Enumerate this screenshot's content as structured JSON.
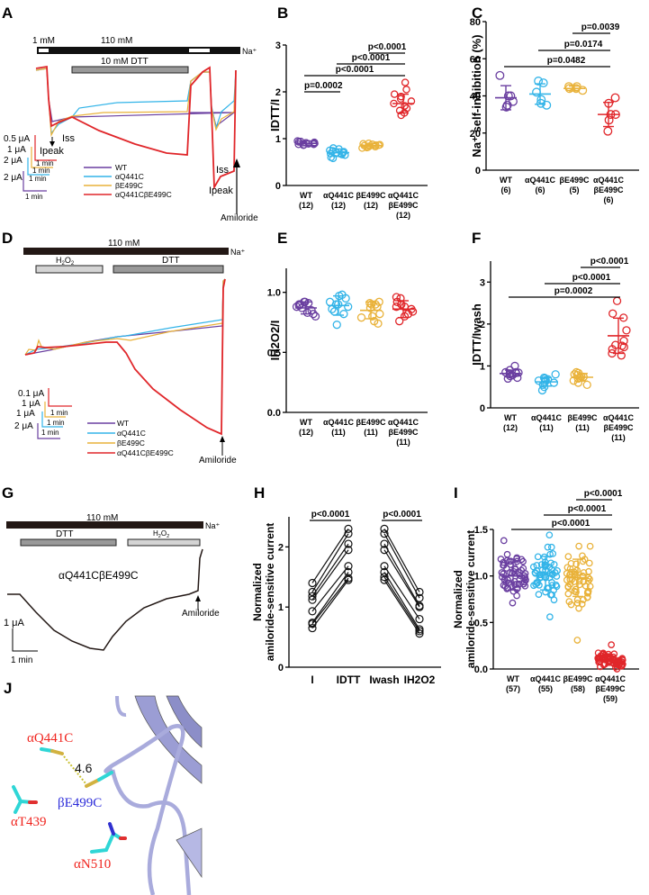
{
  "colors": {
    "WT": "#6a3fa0",
    "aQ441C": "#33b4e8",
    "bE499C": "#e9b23a",
    "double": "#e0262a",
    "black": "#231815",
    "dtt_bar": "#999999",
    "h2o2_bar": "#d4d4d4",
    "protein": "#a9abdc",
    "stick_cyan": "#2fd6d6",
    "sulfur": "#d2b240",
    "red_label": "#f0241e",
    "blue_label": "#2b2bd9"
  },
  "panels": {
    "A": {
      "label": "A",
      "na_label": "Na⁺",
      "conc_low": "1 mM",
      "conc_high": "110 mM",
      "dtt_label": "10 mM DTT",
      "ipeak": "Ipeak",
      "iss": "Iss",
      "amiloride": "Amiloride",
      "scale_bars": [
        {
          "current": "0.5 μA",
          "time": "1 min",
          "series": "double"
        },
        {
          "current": "1 μA",
          "time": "1 min",
          "series": "bE499C"
        },
        {
          "current": "2 μA",
          "time": "1 min",
          "series": "aQ441C"
        },
        {
          "current": "2 μA",
          "time": "1 min",
          "series": "WT"
        }
      ],
      "legend": [
        "WT",
        "αQ441C",
        "βE499C",
        "αQ441CβE499C"
      ]
    },
    "D": {
      "label": "D",
      "na_label": "Na⁺",
      "conc_high": "110 mM",
      "h2o2_label": "H2O2",
      "dtt_label": "DTT",
      "amiloride": "Amiloride",
      "scale_bars": [
        {
          "current": "0.1 μA",
          "time": "",
          "series": "double"
        },
        {
          "current": "1 μA",
          "time": "1 min",
          "series": "bE499C"
        },
        {
          "current": "1 μA",
          "time": "1 min",
          "series": "aQ441C"
        },
        {
          "current": "2 μA",
          "time": "1 min",
          "series": "WT"
        }
      ],
      "legend": [
        "WT",
        "αQ441C",
        "βE499C",
        "αQ441CβE499C"
      ]
    },
    "G": {
      "label": "G",
      "na_label": "Na⁺",
      "conc_high": "110 mM",
      "dtt_label": "DTT",
      "h2o2_label": "H2O2",
      "construct": "αQ441CβE499C",
      "amiloride": "Amiloride",
      "scale_current": "1 μA",
      "scale_time": "1 min"
    },
    "J": {
      "label": "J",
      "labels": {
        "aQ441C": "αQ441C",
        "bE499C": "βE499C",
        "aT439": "αT439",
        "aN510": "αN510",
        "distance": "4.6"
      }
    }
  },
  "chart_data": [
    {
      "id": "B",
      "type": "scatter",
      "title": "",
      "ylabel": "IDTT/I",
      "ylim": [
        0,
        3
      ],
      "yticks": [
        0,
        1,
        2,
        3
      ],
      "categories": [
        "WT\n(12)",
        "αQ441C\n(12)",
        "βE499C\n(12)",
        "αQ441C\nβE499C\n(12)"
      ],
      "series": [
        {
          "name": "WT",
          "mean": 0.9,
          "sd": 0.05,
          "values": [
            0.88,
            0.92,
            0.95,
            0.87,
            0.9,
            0.93,
            0.86,
            0.91,
            0.89,
            0.94,
            0.88,
            0.9
          ]
        },
        {
          "name": "αQ441C",
          "mean": 0.7,
          "sd": 0.08,
          "values": [
            0.6,
            0.65,
            0.7,
            0.75,
            0.8,
            0.68,
            0.72,
            0.58,
            0.78,
            0.66,
            0.74,
            0.7
          ]
        },
        {
          "name": "βE499C",
          "mean": 0.85,
          "sd": 0.05,
          "values": [
            0.82,
            0.86,
            0.9,
            0.83,
            0.88,
            0.8,
            0.85,
            0.87,
            0.84,
            0.89,
            0.81,
            0.86
          ]
        },
        {
          "name": "αQ441CβE499C",
          "mean": 1.75,
          "sd": 0.2,
          "values": [
            2.2,
            2.05,
            1.95,
            1.9,
            1.8,
            1.75,
            1.7,
            1.65,
            1.6,
            1.55,
            1.5,
            1.85
          ]
        }
      ],
      "comparisons": [
        {
          "from": 0,
          "to": 1,
          "label": "p=0.0002"
        },
        {
          "from": 0,
          "to": 3,
          "label": "p<0.0001"
        },
        {
          "from": 1,
          "to": 3,
          "label": "p<0.0001"
        },
        {
          "from": 2,
          "to": 3,
          "label": "p<0.0001"
        }
      ]
    },
    {
      "id": "C",
      "type": "scatter",
      "ylabel": "Na⁺ self-inhibition (%)",
      "ylim": [
        0,
        80
      ],
      "yticks": [
        0,
        20,
        40,
        60,
        80
      ],
      "categories": [
        "WT\n(6)",
        "αQ441C\n(6)",
        "βE499C\n(5)",
        "αQ441C\nβE499C\n(6)"
      ],
      "series": [
        {
          "name": "WT",
          "mean": 39,
          "sd": 6.5,
          "values": [
            51,
            40,
            40,
            37,
            34,
            35
          ]
        },
        {
          "name": "αQ441C",
          "mean": 41,
          "sd": 5.5,
          "values": [
            48,
            47,
            42,
            38,
            35,
            36
          ]
        },
        {
          "name": "βE499C",
          "mean": 44,
          "sd": 1.3,
          "values": [
            45,
            44,
            43,
            44,
            45
          ]
        },
        {
          "name": "αQ441CβE499C",
          "mean": 30,
          "sd": 6.5,
          "values": [
            39,
            36,
            30,
            30,
            27,
            21
          ]
        }
      ],
      "comparisons": [
        {
          "from": 0,
          "to": 3,
          "label": "p=0.0482"
        },
        {
          "from": 1,
          "to": 3,
          "label": "p=0.0174"
        },
        {
          "from": 2,
          "to": 3,
          "label": "p=0.0039"
        }
      ]
    },
    {
      "id": "E",
      "type": "scatter",
      "ylabel": "IH2O2/I",
      "ylim": [
        0,
        1.2
      ],
      "yticks": [
        0.0,
        0.5,
        1.0
      ],
      "ytick_labels": [
        "0.0",
        "0.5",
        "1.0"
      ],
      "categories": [
        "WT\n(12)",
        "αQ441C\n(11)",
        "βE499C\n(11)",
        "αQ441C\nβE499C\n(11)"
      ],
      "series": [
        {
          "name": "WT",
          "mean": 0.87,
          "sd": 0.05,
          "values": [
            0.92,
            0.91,
            0.9,
            0.92,
            0.89,
            0.88,
            0.85,
            0.83,
            0.82,
            0.8,
            0.87,
            0.9
          ]
        },
        {
          "name": "αQ441C",
          "mean": 0.89,
          "sd": 0.08,
          "values": [
            0.98,
            0.97,
            0.95,
            0.92,
            0.9,
            0.88,
            0.86,
            0.84,
            0.82,
            0.73,
            0.9
          ]
        },
        {
          "name": "βE499C",
          "mean": 0.85,
          "sd": 0.07,
          "values": [
            0.92,
            0.91,
            0.9,
            0.9,
            0.88,
            0.82,
            0.8,
            0.79,
            0.76,
            0.74,
            0.87
          ]
        },
        {
          "name": "αQ441CβE499C",
          "mean": 0.86,
          "sd": 0.07,
          "values": [
            0.96,
            0.95,
            0.92,
            0.9,
            0.88,
            0.86,
            0.84,
            0.82,
            0.8,
            0.76,
            0.88
          ]
        }
      ],
      "comparisons": []
    },
    {
      "id": "F",
      "type": "scatter",
      "ylabel": "IDTT/Iwash",
      "ylim": [
        0,
        3.5
      ],
      "yticks": [
        0,
        1,
        2,
        3
      ],
      "categories": [
        "WT\n(12)",
        "αQ441C\n(11)",
        "βE499C\n(11)",
        "αQ441C\nβE499C\n(11)"
      ],
      "series": [
        {
          "name": "WT",
          "mean": 0.82,
          "sd": 0.08,
          "values": [
            1.0,
            0.9,
            0.85,
            0.84,
            0.83,
            0.82,
            0.8,
            0.78,
            0.76,
            0.72,
            0.7,
            0.85
          ]
        },
        {
          "name": "αQ441C",
          "mean": 0.62,
          "sd": 0.1,
          "values": [
            0.8,
            0.72,
            0.7,
            0.68,
            0.65,
            0.62,
            0.6,
            0.55,
            0.5,
            0.42,
            0.66
          ]
        },
        {
          "name": "βE499C",
          "mean": 0.73,
          "sd": 0.09,
          "values": [
            0.85,
            0.83,
            0.8,
            0.78,
            0.75,
            0.72,
            0.7,
            0.65,
            0.6,
            0.55,
            0.74
          ]
        },
        {
          "name": "αQ441CβE499C",
          "mean": 1.72,
          "sd": 0.42,
          "values": [
            2.55,
            2.25,
            2.15,
            1.85,
            1.6,
            1.5,
            1.48,
            1.45,
            1.4,
            1.3,
            1.25
          ]
        }
      ],
      "comparisons": [
        {
          "from": 0,
          "to": 3,
          "label": "p=0.0002"
        },
        {
          "from": 1,
          "to": 3,
          "label": "p<0.0001"
        },
        {
          "from": 2,
          "to": 3,
          "label": "p<0.0001"
        }
      ]
    },
    {
      "id": "H",
      "type": "line",
      "ylabel": "Normalized amiloride-sensitive current",
      "ylim": [
        0,
        2.5
      ],
      "yticks": [
        0,
        1,
        2
      ],
      "categories": [
        "I",
        "IDTT",
        "Iwash",
        "IH2O2"
      ],
      "pairs": [
        {
          "from": [
            0.65,
            0.72,
            0.74,
            0.93,
            1.12,
            1.18,
            1.25,
            1.4
          ],
          "to": [
            1.45,
            1.48,
            1.58,
            1.68,
            1.95,
            2.05,
            2.22,
            2.3
          ]
        },
        {
          "from": [
            1.45,
            1.5,
            1.58,
            1.68,
            1.95,
            2.05,
            2.22,
            2.3
          ],
          "to": [
            0.56,
            0.6,
            0.63,
            0.8,
            1.0,
            1.02,
            1.15,
            1.25
          ]
        }
      ],
      "comparisons": [
        {
          "from": 0,
          "to": 1,
          "label": "p<0.0001"
        },
        {
          "from": 2,
          "to": 3,
          "label": "p<0.0001"
        }
      ]
    },
    {
      "id": "I",
      "type": "scatter",
      "ylabel": "Normalized amiloride-sensitive current",
      "ylim": [
        0,
        1.5
      ],
      "yticks": [
        0.0,
        0.5,
        1.0,
        1.5
      ],
      "ytick_labels": [
        "0.0",
        "0.5",
        "1.0",
        "1.5"
      ],
      "categories": [
        "WT\n(57)",
        "αQ441C\n(55)",
        "βE499C\n(58)",
        "αQ441C\nβE499C\n(59)"
      ],
      "series": [
        {
          "name": "WT",
          "n": 57,
          "mean": 1.0,
          "sd": 0.15,
          "min": 0.71,
          "max": 1.38
        },
        {
          "name": "αQ441C",
          "n": 55,
          "mean": 1.03,
          "sd": 0.18,
          "min": 0.56,
          "max": 1.44
        },
        {
          "name": "βE499C",
          "n": 58,
          "mean": 0.98,
          "sd": 0.2,
          "min": 0.31,
          "max": 1.32
        },
        {
          "name": "αQ441CβE499C",
          "n": 59,
          "mean": 0.09,
          "sd": 0.05,
          "min": 0.0,
          "max": 0.26
        }
      ],
      "comparisons": [
        {
          "from": 0,
          "to": 3,
          "label": "p<0.0001"
        },
        {
          "from": 1,
          "to": 3,
          "label": "p<0.0001"
        },
        {
          "from": 2,
          "to": 3,
          "label": "p<0.0001"
        }
      ]
    }
  ]
}
